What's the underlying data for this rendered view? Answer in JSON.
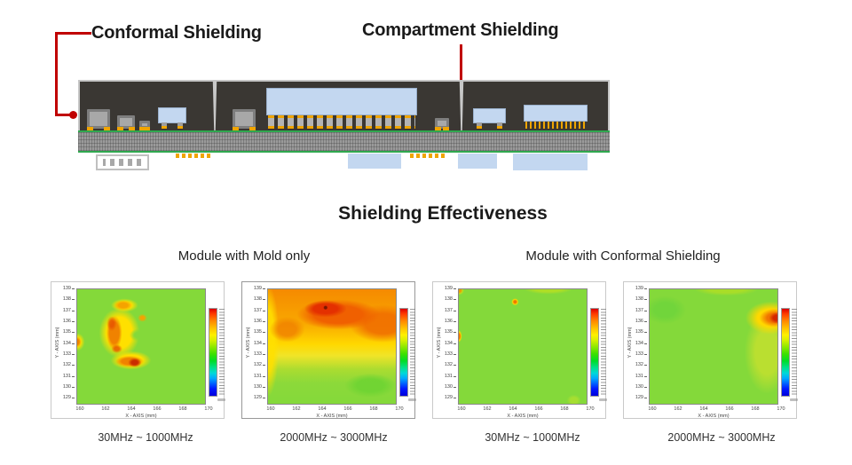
{
  "diagram": {
    "conformal_label": "Conformal Shielding",
    "compartment_label": "Compartment Shielding",
    "pointer_color": "#c00000",
    "colors": {
      "mold": "#3a3733",
      "conformal_shield_coating": "#c6c6c6",
      "die_blue": "#c3d7f0",
      "passive_gray": "#a8a8a8",
      "substrate_gray": "#9a9a9a",
      "board_green": "#2fa84f",
      "solder_pad_orange": "#f0a500"
    }
  },
  "section_title": "Shielding Effectiveness",
  "column_headers": {
    "left": "Module with Mold only",
    "right": "Module with Conformal Shielding"
  },
  "chart_data": [
    {
      "type": "heatmap",
      "group": "Module with Mold only",
      "caption": "30MHz ~ 1000MHz",
      "xlabel": "X - AXIS  (mm)",
      "ylabel": "Y - AXIS  (mm)",
      "x_ticks": [
        160,
        162,
        164,
        166,
        168,
        170
      ],
      "y_ticks": [
        139,
        138,
        137,
        136,
        135,
        134,
        133,
        132,
        131,
        130,
        129
      ],
      "xlim": [
        159,
        170
      ],
      "ylim": [
        128.8,
        139.4
      ],
      "legend_position": "right-colorbar",
      "colorbar_colors_top_to_bottom": [
        "#dc0000",
        "#ff8800",
        "#fff000",
        "#3ce000",
        "#00d8d8",
        "#0000dc"
      ],
      "colorbar_tick_labels_legible": false,
      "background_level": "green (moderate field)",
      "hotspots": [
        {
          "shape": "C-shaped orange ridge",
          "x_range": [
            160.5,
            165.5
          ],
          "y_range": [
            132,
            138.8
          ],
          "level": "orange (high)"
        },
        {
          "x": 164,
          "y": 132.7,
          "level": "red peak on lower arm"
        },
        {
          "x": 161.5,
          "y": 136.5,
          "level": "red-orange core in vertical bar"
        },
        {
          "x": 159,
          "y": 134.8,
          "level": "orange spot at left edge"
        }
      ]
    },
    {
      "type": "heatmap",
      "group": "Module with Mold only",
      "caption": "2000MHz ~ 3000MHz",
      "xlabel": "X - AXIS  (mm)",
      "ylabel": "Y - AXIS  (mm)",
      "x_ticks": [
        160,
        162,
        164,
        166,
        168,
        170
      ],
      "y_ticks": [
        139,
        138,
        137,
        136,
        135,
        134,
        133,
        132,
        131,
        130,
        129
      ],
      "xlim": [
        159,
        170
      ],
      "ylim": [
        128.8,
        139.4
      ],
      "legend_position": "right-colorbar",
      "colorbar_colors_top_to_bottom": [
        "#dc0000",
        "#ff8800",
        "#fff000",
        "#3ce000",
        "#00d8d8",
        "#0000dc"
      ],
      "colorbar_tick_labels_legible": false,
      "background_level": "orange top half grading to green bottom",
      "hotspots": [
        {
          "shape": "broad red ridge across top",
          "x_range": [
            161,
            168
          ],
          "y_range": [
            135.5,
            138.5
          ],
          "level": "red (very high)"
        },
        {
          "x": 164,
          "y": 137.3,
          "level": "dark red maximum point"
        },
        {
          "shape": "cool green region",
          "x_range": [
            165,
            170
          ],
          "y_range": [
            129,
            131.5
          ],
          "level": "green (low)"
        }
      ]
    },
    {
      "type": "heatmap",
      "group": "Module with Conformal Shielding",
      "caption": "30MHz ~ 1000MHz",
      "xlabel": "X - AXIS  (mm)",
      "ylabel": "Y - AXIS  (mm)",
      "x_ticks": [
        160,
        162,
        164,
        166,
        168,
        170
      ],
      "y_ticks": [
        139,
        138,
        137,
        136,
        135,
        134,
        133,
        132,
        131,
        130,
        129
      ],
      "xlim": [
        159,
        170
      ],
      "ylim": [
        128.8,
        139.4
      ],
      "legend_position": "right-colorbar",
      "colorbar_colors_top_to_bottom": [
        "#dc0000",
        "#ff8800",
        "#fff000",
        "#3ce000",
        "#00d8d8",
        "#0000dc"
      ],
      "colorbar_tick_labels_legible": false,
      "background_level": "uniform green (suppressed field)",
      "hotspots": [
        {
          "x": 164.2,
          "y": 138.6,
          "level": "small orange diamond spot"
        },
        {
          "x": 159,
          "y": 135,
          "level": "small orange spot at left edge"
        },
        {
          "x": 159.1,
          "y": 139.2,
          "level": "small orange spot at top-left corner"
        }
      ]
    },
    {
      "type": "heatmap",
      "group": "Module with Conformal Shielding",
      "caption": "2000MHz ~ 3000MHz",
      "xlabel": "X - AXIS  (mm)",
      "ylabel": "Y - AXIS  (mm)",
      "x_ticks": [
        160,
        162,
        164,
        166,
        168,
        170
      ],
      "y_ticks": [
        139,
        138,
        137,
        136,
        135,
        134,
        133,
        132,
        131,
        130,
        129
      ],
      "xlim": [
        159,
        170
      ],
      "ylim": [
        128.8,
        139.4
      ],
      "legend_position": "right-colorbar",
      "colorbar_colors_top_to_bottom": [
        "#dc0000",
        "#ff8800",
        "#fff000",
        "#3ce000",
        "#00d8d8",
        "#0000dc"
      ],
      "colorbar_tick_labels_legible": false,
      "background_level": "green with warm right edge",
      "hotspots": [
        {
          "shape": "hotspot at right edge",
          "x_range": [
            167.5,
            170
          ],
          "y_range": [
            135.5,
            138
          ],
          "level": "orange-red (high)"
        },
        {
          "x": 169.9,
          "y": 136.8,
          "level": "red peak at right boundary"
        },
        {
          "shape": "yellow band along right side",
          "x_range": [
            166,
            170
          ],
          "y_range": [
            130.5,
            138.5
          ],
          "level": "yellow (elevated)"
        }
      ]
    }
  ]
}
